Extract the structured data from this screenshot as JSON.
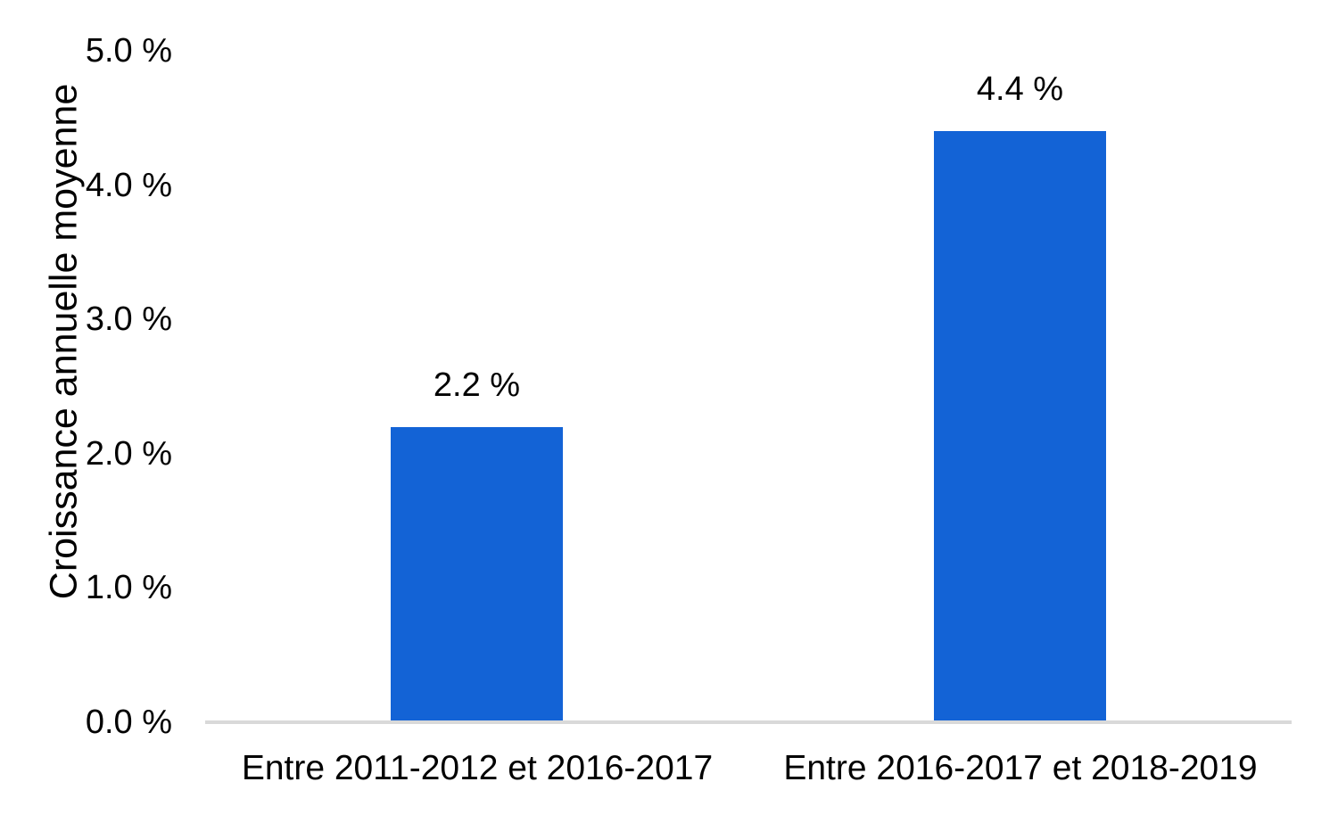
{
  "chart_data": {
    "type": "bar",
    "title": "",
    "xlabel": "",
    "ylabel": "Croissance annuelle moyenne",
    "categories": [
      "Entre 2011-2012 et 2016-2017",
      "Entre 2016-2017 et 2018-2019"
    ],
    "values": [
      2.2,
      4.4
    ],
    "data_labels": [
      "2.2 %",
      "4.4 %"
    ],
    "y_tick_labels_top_to_bottom": [
      "5.0 %",
      "4.0 %",
      "3.0 %",
      "2.0 %",
      "1.0 %",
      "0.0 %"
    ],
    "ylim": [
      0,
      5
    ],
    "y_tick_step": 1.0,
    "grid": "off",
    "legend": "none",
    "bar_color": "#1363D6",
    "axis_line_color": "#D9D9D9",
    "text_color": "#000000",
    "background_color": "#FFFFFF"
  }
}
